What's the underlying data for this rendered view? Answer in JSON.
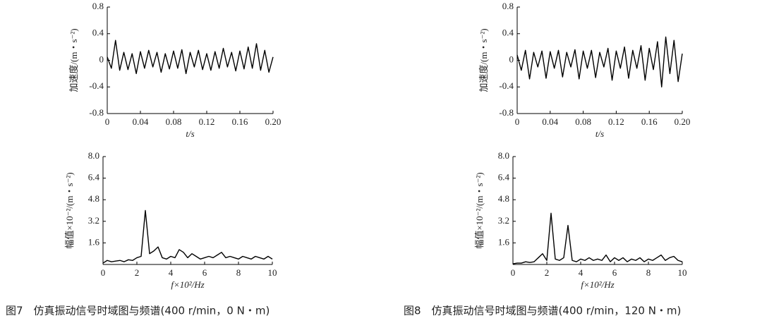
{
  "chart_data": [
    {
      "type": "line",
      "xlabel": "t/s",
      "ylabel": "加速度/(m・s⁻²)",
      "x": [
        0,
        0.005,
        0.01,
        0.015,
        0.02,
        0.025,
        0.03,
        0.035,
        0.04,
        0.045,
        0.05,
        0.055,
        0.06,
        0.065,
        0.07,
        0.075,
        0.08,
        0.085,
        0.09,
        0.095,
        0.1,
        0.105,
        0.11,
        0.115,
        0.12,
        0.125,
        0.13,
        0.135,
        0.14,
        0.145,
        0.15,
        0.155,
        0.16,
        0.165,
        0.17,
        0.175,
        0.18,
        0.185,
        0.19,
        0.195,
        0.2
      ],
      "series": [
        {
          "color": "#000000",
          "values": [
            0.05,
            -0.12,
            0.3,
            -0.15,
            0.12,
            -0.14,
            0.1,
            -0.2,
            0.13,
            -0.12,
            0.15,
            -0.1,
            0.12,
            -0.18,
            0.1,
            -0.13,
            0.14,
            -0.12,
            0.16,
            -0.2,
            0.12,
            -0.1,
            0.15,
            -0.14,
            0.1,
            -0.15,
            0.13,
            -0.12,
            0.18,
            -0.1,
            0.12,
            -0.16,
            0.14,
            -0.13,
            0.2,
            -0.12,
            0.25,
            -0.15,
            0.15,
            -0.18,
            0.05
          ]
        }
      ],
      "xlim": [
        0,
        0.2
      ],
      "ylim": [
        -0.8,
        0.8
      ],
      "xticks": [
        0,
        0.04,
        0.08,
        0.12,
        0.16,
        {
          "value": 0.2,
          "label": "0.20"
        }
      ],
      "yticks": [
        -0.8,
        -0.4,
        0,
        0.4,
        0.8
      ]
    },
    {
      "type": "line",
      "xlabel": "f×10²/Hz",
      "ylabel": "幅值×10⁻²/(m・s⁻²)",
      "x": [
        0,
        0.25,
        0.5,
        0.75,
        1,
        1.25,
        1.5,
        1.75,
        2,
        2.25,
        2.5,
        2.75,
        3,
        3.25,
        3.5,
        3.75,
        4,
        4.25,
        4.5,
        4.75,
        5,
        5.25,
        5.5,
        5.75,
        6,
        6.25,
        6.5,
        6.75,
        7,
        7.25,
        7.5,
        7.75,
        8,
        8.25,
        8.5,
        8.75,
        9,
        9.25,
        9.5,
        9.75,
        10
      ],
      "series": [
        {
          "color": "#000000",
          "values": [
            0.1,
            0.3,
            0.2,
            0.25,
            0.3,
            0.2,
            0.35,
            0.3,
            0.5,
            0.6,
            4.0,
            0.8,
            1.0,
            1.3,
            0.5,
            0.4,
            0.6,
            0.5,
            1.1,
            0.9,
            0.5,
            0.8,
            0.6,
            0.4,
            0.5,
            0.6,
            0.5,
            0.7,
            0.9,
            0.5,
            0.6,
            0.5,
            0.4,
            0.6,
            0.5,
            0.4,
            0.6,
            0.5,
            0.4,
            0.6,
            0.4
          ]
        }
      ],
      "xlim": [
        0,
        10
      ],
      "ylim": [
        0,
        8
      ],
      "xticks": [
        0,
        2,
        4,
        6,
        8,
        10
      ],
      "yticks": [
        1.6,
        3.2,
        4.8,
        6.4,
        {
          "value": 8,
          "label": "8.0"
        }
      ]
    },
    {
      "type": "line",
      "xlabel": "t/s",
      "ylabel": "加速度/(m・s⁻²)",
      "x": [
        0,
        0.005,
        0.01,
        0.015,
        0.02,
        0.025,
        0.03,
        0.035,
        0.04,
        0.045,
        0.05,
        0.055,
        0.06,
        0.065,
        0.07,
        0.075,
        0.08,
        0.085,
        0.09,
        0.095,
        0.1,
        0.105,
        0.11,
        0.115,
        0.12,
        0.125,
        0.13,
        0.135,
        0.14,
        0.145,
        0.15,
        0.155,
        0.16,
        0.165,
        0.17,
        0.175,
        0.18,
        0.185,
        0.19,
        0.195,
        0.2
      ],
      "series": [
        {
          "color": "#000000",
          "values": [
            0.08,
            -0.15,
            0.15,
            -0.28,
            0.12,
            -0.1,
            0.14,
            -0.27,
            0.13,
            -0.12,
            0.15,
            -0.25,
            0.12,
            -0.1,
            0.16,
            -0.28,
            0.14,
            -0.12,
            0.15,
            -0.26,
            0.12,
            -0.1,
            0.18,
            -0.3,
            0.14,
            -0.12,
            0.2,
            -0.27,
            0.15,
            -0.12,
            0.22,
            -0.3,
            0.18,
            -0.14,
            0.28,
            -0.4,
            0.35,
            -0.2,
            0.3,
            -0.32,
            0.1
          ]
        }
      ],
      "xlim": [
        0,
        0.2
      ],
      "ylim": [
        -0.8,
        0.8
      ],
      "xticks": [
        0,
        0.04,
        0.08,
        0.12,
        0.16,
        {
          "value": 0.2,
          "label": "0.20"
        }
      ],
      "yticks": [
        -0.8,
        -0.4,
        0,
        0.4,
        0.8
      ]
    },
    {
      "type": "line",
      "xlabel": "f×10²/Hz",
      "ylabel": "幅值×10⁻²/(m・s⁻²)",
      "x": [
        0,
        0.25,
        0.5,
        0.75,
        1,
        1.25,
        1.5,
        1.75,
        2,
        2.25,
        2.5,
        2.75,
        3,
        3.25,
        3.5,
        3.75,
        4,
        4.25,
        4.5,
        4.75,
        5,
        5.25,
        5.5,
        5.75,
        6,
        6.25,
        6.5,
        6.75,
        7,
        7.25,
        7.5,
        7.75,
        8,
        8.25,
        8.5,
        8.75,
        9,
        9.25,
        9.5,
        9.75,
        10
      ],
      "series": [
        {
          "color": "#000000",
          "values": [
            0.05,
            0.1,
            0.1,
            0.2,
            0.15,
            0.2,
            0.5,
            0.8,
            0.3,
            3.8,
            0.4,
            0.3,
            0.5,
            2.9,
            0.3,
            0.2,
            0.4,
            0.3,
            0.5,
            0.3,
            0.4,
            0.3,
            0.7,
            0.2,
            0.5,
            0.3,
            0.5,
            0.2,
            0.4,
            0.3,
            0.5,
            0.2,
            0.4,
            0.3,
            0.5,
            0.7,
            0.3,
            0.5,
            0.6,
            0.3,
            0.2
          ]
        }
      ],
      "xlim": [
        0,
        10
      ],
      "ylim": [
        0,
        8
      ],
      "xticks": [
        0,
        2,
        4,
        6,
        8,
        10
      ],
      "yticks": [
        1.6,
        3.2,
        4.8,
        6.4,
        {
          "value": 8,
          "label": "8.0"
        }
      ]
    }
  ],
  "captions": [
    "图7　仿真振动信号时域图与频谱(400 r/min，0 N・m)",
    "图8　仿真振动信号时域图与频谱(400 r/min，120 N・m)"
  ]
}
